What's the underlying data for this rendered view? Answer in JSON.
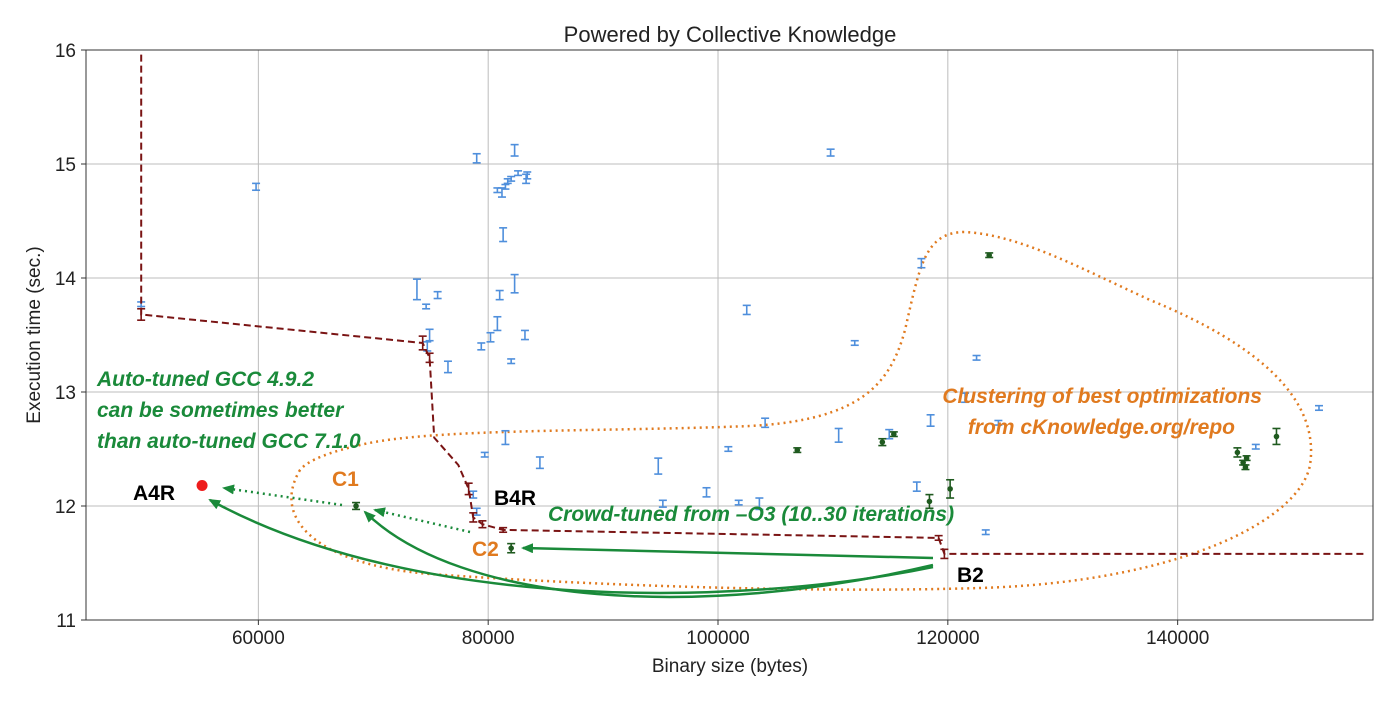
{
  "chart_data": {
    "type": "scatter",
    "title": "Powered by Collective Knowledge",
    "xlabel": "Binary size (bytes)",
    "ylabel": "Execution time (sec.)",
    "xlim": [
      45000,
      157000
    ],
    "ylim": [
      11,
      16
    ],
    "xticks": [
      "60000",
      "80000",
      "100000",
      "120000",
      "140000"
    ],
    "xtick_values": [
      60000,
      80000,
      100000,
      120000,
      140000
    ],
    "yticks": [
      "11",
      "12",
      "13",
      "14",
      "15",
      "16"
    ],
    "ytick_values": [
      11,
      12,
      13,
      14,
      15,
      16
    ],
    "grid": true,
    "colors": {
      "blue": "#4f8fdc",
      "dark_green": "#1f5a1f",
      "frontier": "#7a1414",
      "annotation_green": "#1a8a3a",
      "annotation_orange": "#e07a1f",
      "red": "#ee1c1c"
    },
    "series": [
      {
        "points": [
          [
            49800,
            13.77,
            0.02
          ],
          [
            59800,
            14.8,
            0.03
          ],
          [
            73800,
            13.9,
            0.09
          ],
          [
            74600,
            13.75,
            0.02
          ],
          [
            75600,
            13.85,
            0.03
          ],
          [
            74900,
            13.5,
            0.05
          ],
          [
            74700,
            13.4,
            0.04
          ],
          [
            76500,
            13.22,
            0.05
          ],
          [
            79000,
            15.05,
            0.04
          ],
          [
            79400,
            13.4,
            0.03
          ],
          [
            80200,
            13.48,
            0.04
          ],
          [
            80800,
            13.6,
            0.06
          ],
          [
            81000,
            13.85,
            0.04
          ],
          [
            80800,
            14.77,
            0.02
          ],
          [
            81200,
            14.75,
            0.04
          ],
          [
            81500,
            14.8,
            0.02
          ],
          [
            81700,
            14.85,
            0.02
          ],
          [
            81300,
            14.38,
            0.06
          ],
          [
            82000,
            14.87,
            0.02
          ],
          [
            82600,
            14.92,
            0.02
          ],
          [
            82300,
            15.12,
            0.05
          ],
          [
            83400,
            14.9,
            0.03
          ],
          [
            83300,
            14.87,
            0.04
          ],
          [
            82000,
            13.27,
            0.02
          ],
          [
            82300,
            13.95,
            0.08
          ],
          [
            83200,
            13.5,
            0.04
          ],
          [
            81500,
            12.6,
            0.06
          ],
          [
            79700,
            12.45,
            0.02
          ],
          [
            78700,
            12.1,
            0.03
          ],
          [
            79000,
            11.95,
            0.03
          ],
          [
            84500,
            12.38,
            0.05
          ],
          [
            94800,
            12.35,
            0.07
          ],
          [
            95200,
            12.02,
            0.03
          ],
          [
            99000,
            12.12,
            0.04
          ],
          [
            100900,
            12.5,
            0.02
          ],
          [
            101800,
            12.03,
            0.02
          ],
          [
            103600,
            12.02,
            0.05
          ],
          [
            104100,
            12.73,
            0.04
          ],
          [
            102500,
            13.72,
            0.04
          ],
          [
            109800,
            15.1,
            0.03
          ],
          [
            110500,
            12.62,
            0.06
          ],
          [
            111900,
            13.43,
            0.02
          ],
          [
            114900,
            12.63,
            0.04
          ],
          [
            117300,
            12.17,
            0.04
          ],
          [
            117700,
            14.13,
            0.04
          ],
          [
            118500,
            12.75,
            0.05
          ],
          [
            121500,
            12.95,
            0.04
          ],
          [
            122500,
            13.3,
            0.02
          ],
          [
            123300,
            11.77,
            0.02
          ],
          [
            124400,
            12.73,
            0.02
          ],
          [
            146800,
            12.52,
            0.02
          ],
          [
            152300,
            12.86,
            0.02
          ]
        ]
      },
      {
        "points": [
          [
            68500,
            12.0,
            0.03
          ],
          [
            82000,
            11.63,
            0.04
          ],
          [
            106900,
            12.49,
            0.02
          ],
          [
            114300,
            12.56,
            0.03
          ],
          [
            115300,
            12.63,
            0.02
          ],
          [
            118400,
            12.04,
            0.06
          ],
          [
            120200,
            12.15,
            0.08
          ],
          [
            123600,
            14.2,
            0.02
          ],
          [
            145200,
            12.47,
            0.04
          ],
          [
            145700,
            12.38,
            0.02
          ],
          [
            145900,
            12.34,
            0.02
          ],
          [
            146000,
            12.42,
            0.02
          ],
          [
            148600,
            12.61,
            0.07
          ]
        ]
      },
      {
        "frontier": [
          [
            49800,
            15.96
          ],
          [
            49800,
            13.68
          ],
          [
            74300,
            13.43
          ],
          [
            74900,
            13.3
          ],
          [
            75300,
            12.6
          ],
          [
            77400,
            12.36
          ],
          [
            78300,
            12.15
          ],
          [
            78700,
            11.9
          ],
          [
            79500,
            11.84
          ],
          [
            81300,
            11.79
          ],
          [
            119200,
            11.72
          ],
          [
            119700,
            11.58
          ],
          [
            156300,
            11.58
          ]
        ],
        "points": [
          [
            49800,
            13.68,
            0.05
          ],
          [
            74300,
            13.43,
            0.06
          ],
          [
            74900,
            13.3,
            0.04
          ],
          [
            78300,
            12.15,
            0.05
          ],
          [
            78700,
            11.9,
            0.04
          ],
          [
            79500,
            11.84,
            0.03
          ],
          [
            81300,
            11.79,
            0.02
          ],
          [
            119200,
            11.72,
            0.02
          ],
          [
            119700,
            11.58,
            0.04
          ]
        ]
      }
    ],
    "red_point": [
      55100,
      12.18
    ],
    "annotations": {
      "auto_tuned": [
        "Auto-tuned GCC 4.9.2",
        "can be sometimes better",
        "than auto-tuned GCC 7.1.0"
      ],
      "clustering": [
        "Clustering of best optimizations",
        "from cKnowledge.org/repo"
      ],
      "crowd_tuned": "Crowd-tuned from –O3 (10..30 iterations)",
      "labels": {
        "a4r": "A4R",
        "b4r": "B4R",
        "c1": "C1",
        "c2": "C2",
        "b2": "B2"
      }
    }
  }
}
